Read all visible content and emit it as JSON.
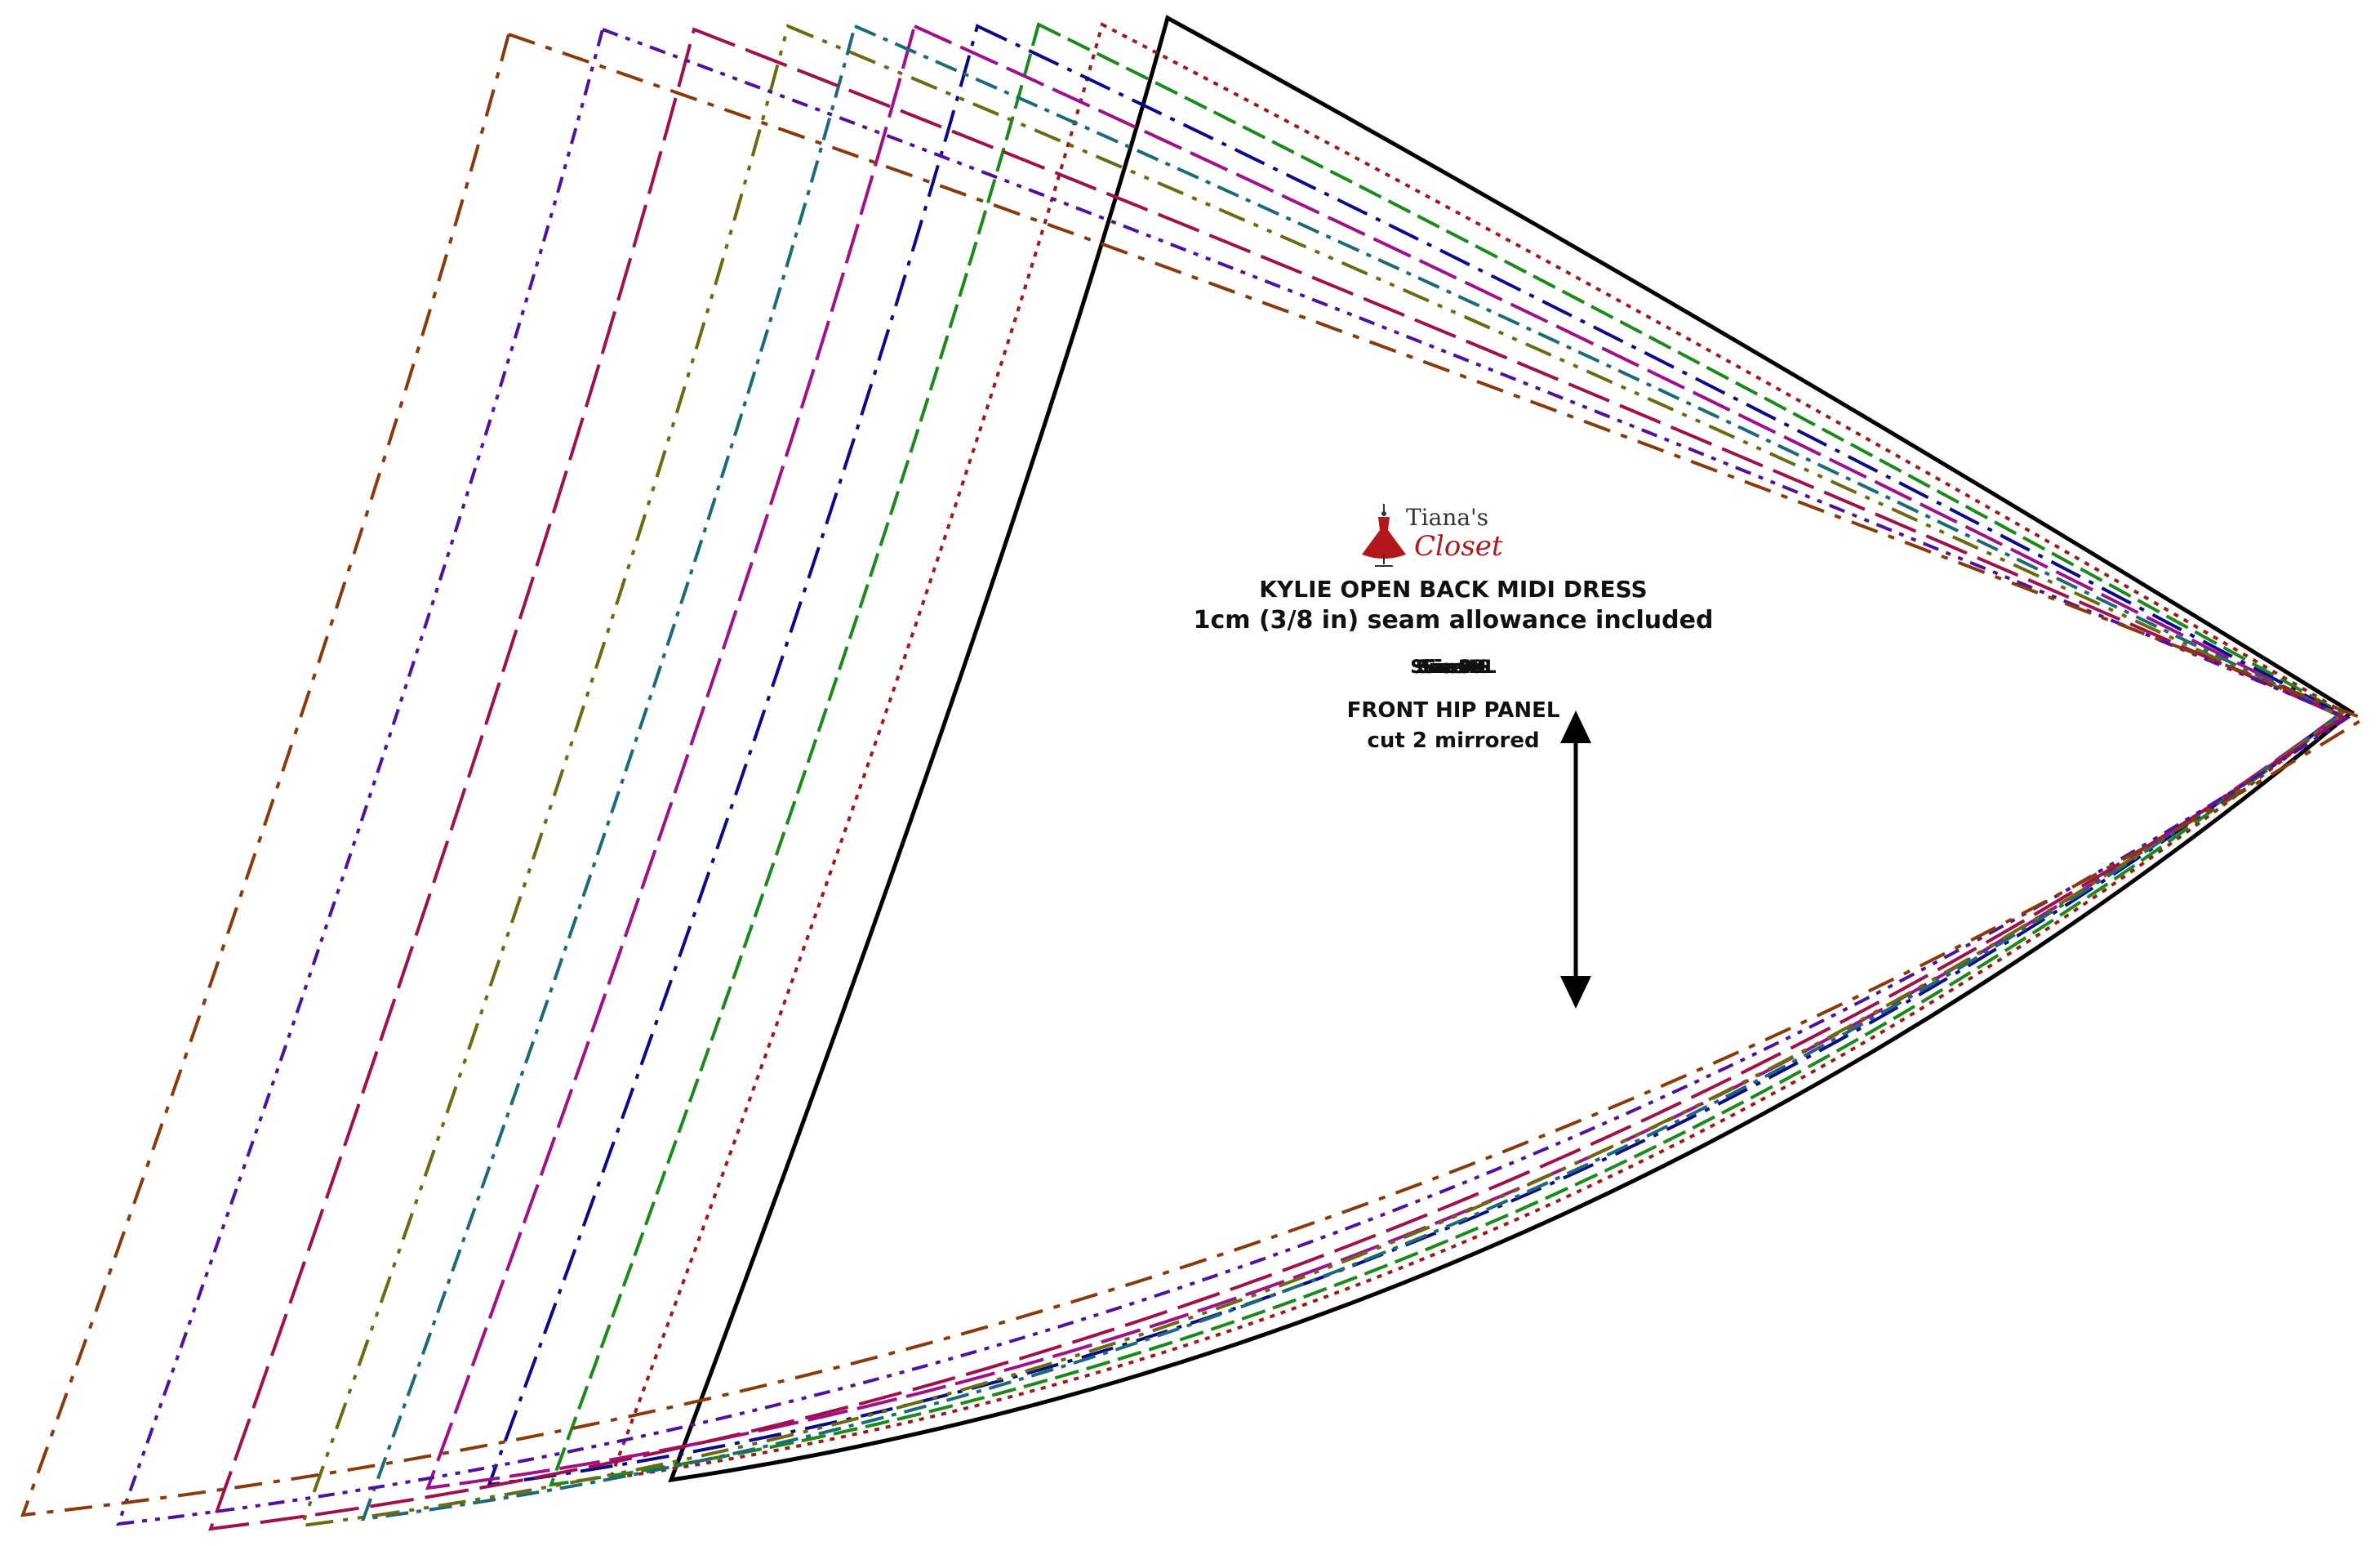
{
  "logo": {
    "line1": "Tiana's",
    "line2": "Closet"
  },
  "pattern": {
    "title": "KYLIE OPEN BACK MIDI DRESS",
    "seam_allowance": "1cm (3/8 in) seam allowance included",
    "size_labels": [
      "Size XS",
      "Size S",
      "Size M",
      "Size L",
      "Size XL",
      "Size 2XL",
      "Size 3XL",
      "Size 4XL",
      "Size 5XL",
      "Size 6XL"
    ],
    "piece_name": "FRONT HIP PANEL",
    "cut_instruction": "cut 2 mirrored"
  },
  "size_colors": [
    "#000000",
    "#a01818",
    "#1a8a1a",
    "#0a0a8a",
    "#a0108a",
    "#1a6a7a",
    "#6a6a10",
    "#a0104a",
    "#5010a0",
    "#8a3a0a"
  ]
}
